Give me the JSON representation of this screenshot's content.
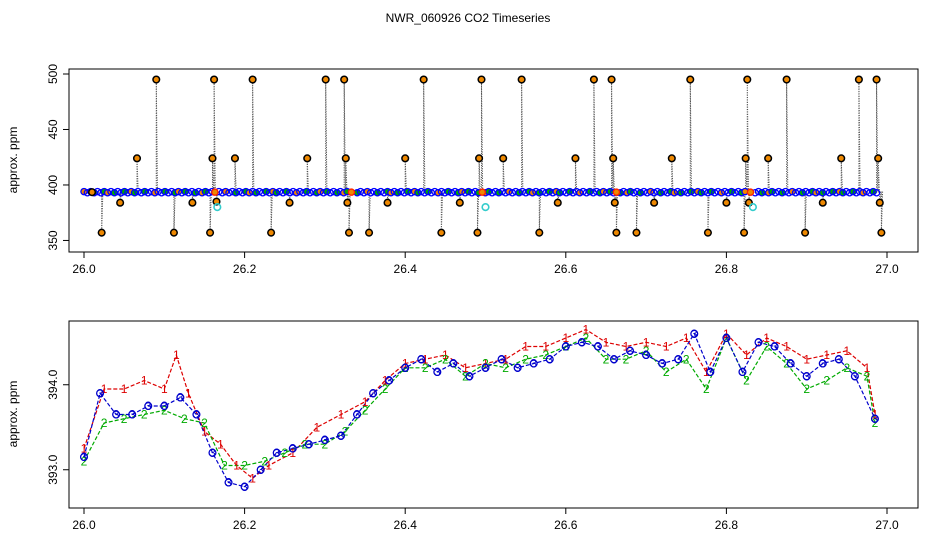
{
  "title": "NWR_060926  CO2 Timeseries",
  "colors": {
    "frame": "#000000",
    "trace": "#555555",
    "flagged_marker": "#000000",
    "outlier_marker": "#33cccc",
    "main_marker": "#0000ff",
    "marker_fill_green": "#00aa00",
    "marker_fill_orange": "#ee8800",
    "line_1": "#dd0000",
    "line_2": "#00aa00",
    "line_3": "#0000cc"
  },
  "chart_data": [
    {
      "type": "scatter",
      "title": "",
      "xlabel": "",
      "ylabel": "approx. ppm",
      "xlim": [
        26.0,
        27.0
      ],
      "ylim": [
        345,
        500
      ],
      "x_ticks": [
        26.0,
        26.2,
        26.4,
        26.6,
        26.8,
        27.0
      ],
      "y_ticks": [
        350,
        400,
        450,
        500
      ],
      "x_tick_labels": [
        "26.0",
        "26.2",
        "26.4",
        "26.6",
        "26.8",
        "27.0"
      ],
      "y_tick_labels": [
        "350",
        "400",
        "450",
        "500"
      ],
      "grid": false,
      "baseline": {
        "x": [
          26.0,
          26.99
        ],
        "y": 393.5
      },
      "segment_breaks": [
        26.163,
        26.333,
        26.496,
        26.663,
        26.83
      ],
      "flagged_points": [
        {
          "x": 26.01,
          "y": 393.5
        },
        {
          "x": 26.022,
          "y": 357
        },
        {
          "x": 26.045,
          "y": 384
        },
        {
          "x": 26.066,
          "y": 424
        },
        {
          "x": 26.09,
          "y": 495
        },
        {
          "x": 26.112,
          "y": 357
        },
        {
          "x": 26.135,
          "y": 384
        },
        {
          "x": 26.157,
          "y": 357
        },
        {
          "x": 26.16,
          "y": 424
        },
        {
          "x": 26.162,
          "y": 495
        },
        {
          "x": 26.165,
          "y": 385
        },
        {
          "x": 26.188,
          "y": 424
        },
        {
          "x": 26.21,
          "y": 495
        },
        {
          "x": 26.233,
          "y": 357
        },
        {
          "x": 26.256,
          "y": 384
        },
        {
          "x": 26.278,
          "y": 424
        },
        {
          "x": 26.301,
          "y": 495
        },
        {
          "x": 26.324,
          "y": 495
        },
        {
          "x": 26.326,
          "y": 424
        },
        {
          "x": 26.328,
          "y": 384
        },
        {
          "x": 26.33,
          "y": 357
        },
        {
          "x": 26.355,
          "y": 357
        },
        {
          "x": 26.378,
          "y": 384
        },
        {
          "x": 26.4,
          "y": 424
        },
        {
          "x": 26.423,
          "y": 495
        },
        {
          "x": 26.445,
          "y": 357
        },
        {
          "x": 26.468,
          "y": 384
        },
        {
          "x": 26.49,
          "y": 357
        },
        {
          "x": 26.492,
          "y": 424
        },
        {
          "x": 26.495,
          "y": 495
        },
        {
          "x": 26.522,
          "y": 424
        },
        {
          "x": 26.545,
          "y": 495
        },
        {
          "x": 26.567,
          "y": 357
        },
        {
          "x": 26.59,
          "y": 384
        },
        {
          "x": 26.612,
          "y": 424
        },
        {
          "x": 26.635,
          "y": 495
        },
        {
          "x": 26.657,
          "y": 495
        },
        {
          "x": 26.659,
          "y": 424
        },
        {
          "x": 26.661,
          "y": 384
        },
        {
          "x": 26.663,
          "y": 357
        },
        {
          "x": 26.688,
          "y": 357
        },
        {
          "x": 26.71,
          "y": 384
        },
        {
          "x": 26.732,
          "y": 424
        },
        {
          "x": 26.755,
          "y": 495
        },
        {
          "x": 26.777,
          "y": 357
        },
        {
          "x": 26.8,
          "y": 384
        },
        {
          "x": 26.822,
          "y": 357
        },
        {
          "x": 26.824,
          "y": 424
        },
        {
          "x": 26.826,
          "y": 495
        },
        {
          "x": 26.828,
          "y": 384
        },
        {
          "x": 26.852,
          "y": 424
        },
        {
          "x": 26.875,
          "y": 495
        },
        {
          "x": 26.898,
          "y": 357
        },
        {
          "x": 26.92,
          "y": 384
        },
        {
          "x": 26.943,
          "y": 424
        },
        {
          "x": 26.965,
          "y": 495
        },
        {
          "x": 26.987,
          "y": 495
        },
        {
          "x": 26.989,
          "y": 424
        },
        {
          "x": 26.991,
          "y": 384
        },
        {
          "x": 26.993,
          "y": 357
        }
      ],
      "outlier_points": [
        {
          "x": 26.166,
          "y": 380
        },
        {
          "x": 26.5,
          "y": 380
        },
        {
          "x": 26.833,
          "y": 380
        }
      ]
    },
    {
      "type": "line",
      "title": "",
      "xlabel": "",
      "ylabel": "approx. ppm",
      "xlim": [
        26.0,
        27.0
      ],
      "ylim": [
        392.55,
        394.75
      ],
      "x_ticks": [
        26.0,
        26.2,
        26.4,
        26.6,
        26.8,
        27.0
      ],
      "y_ticks": [
        393.0,
        394.0
      ],
      "x_tick_labels": [
        "26.0",
        "26.2",
        "26.4",
        "26.6",
        "26.8",
        "27.0"
      ],
      "y_tick_labels": [
        "393.0",
        "394.0"
      ],
      "grid": false,
      "series": [
        {
          "name": "1",
          "marker": "1",
          "x": [
            26.0,
            26.025,
            26.05,
            26.075,
            26.1,
            26.115,
            26.13,
            26.15,
            26.17,
            26.19,
            26.21,
            26.23,
            26.26,
            26.29,
            26.32,
            26.35,
            26.375,
            26.4,
            26.425,
            26.45,
            26.475,
            26.5,
            26.525,
            26.55,
            26.575,
            26.6,
            26.625,
            26.65,
            26.675,
            26.7,
            26.725,
            26.75,
            26.775,
            26.8,
            26.825,
            26.85,
            26.875,
            26.9,
            26.925,
            26.95,
            26.975,
            26.985
          ],
          "y": [
            393.25,
            393.95,
            393.95,
            394.05,
            393.95,
            394.35,
            393.9,
            393.45,
            393.3,
            393.05,
            392.9,
            393.05,
            393.2,
            393.5,
            393.65,
            393.8,
            394.05,
            394.25,
            394.3,
            394.35,
            394.2,
            394.25,
            394.3,
            394.45,
            394.45,
            394.55,
            394.65,
            394.5,
            394.45,
            394.5,
            394.45,
            394.55,
            394.15,
            394.6,
            394.35,
            394.55,
            394.45,
            394.3,
            394.35,
            394.4,
            394.2,
            393.65
          ]
        },
        {
          "name": "2",
          "marker": "2",
          "x": [
            26.0,
            26.025,
            26.05,
            26.075,
            26.1,
            26.125,
            26.15,
            26.175,
            26.2,
            26.225,
            26.25,
            26.275,
            26.3,
            26.325,
            26.35,
            26.375,
            26.4,
            26.425,
            26.45,
            26.475,
            26.5,
            26.525,
            26.55,
            26.575,
            26.6,
            26.625,
            26.65,
            26.675,
            26.7,
            26.725,
            26.75,
            26.775,
            26.8,
            26.825,
            26.85,
            26.875,
            26.9,
            26.925,
            26.95,
            26.975,
            26.985
          ],
          "y": [
            393.1,
            393.55,
            393.6,
            393.65,
            393.7,
            393.6,
            393.55,
            393.05,
            393.05,
            393.1,
            393.2,
            393.3,
            393.3,
            393.45,
            393.7,
            393.95,
            394.2,
            394.2,
            394.3,
            394.1,
            394.25,
            394.2,
            394.3,
            394.35,
            394.45,
            394.55,
            394.3,
            394.3,
            394.4,
            394.15,
            394.3,
            393.95,
            394.55,
            394.05,
            394.45,
            394.25,
            393.95,
            394.05,
            394.2,
            394.1,
            393.55
          ]
        },
        {
          "name": "3",
          "marker": "3",
          "x": [
            26.0,
            26.02,
            26.04,
            26.06,
            26.08,
            26.1,
            26.12,
            26.14,
            26.16,
            26.18,
            26.2,
            26.22,
            26.24,
            26.26,
            26.28,
            26.3,
            26.32,
            26.34,
            26.36,
            26.38,
            26.4,
            26.42,
            26.44,
            26.46,
            26.48,
            26.5,
            26.52,
            26.54,
            26.56,
            26.58,
            26.6,
            26.62,
            26.64,
            26.66,
            26.68,
            26.7,
            26.72,
            26.74,
            26.76,
            26.78,
            26.8,
            26.82,
            26.84,
            26.86,
            26.88,
            26.9,
            26.92,
            26.94,
            26.96,
            26.985
          ],
          "y": [
            393.15,
            393.9,
            393.65,
            393.65,
            393.75,
            393.75,
            393.85,
            393.65,
            393.2,
            392.85,
            392.8,
            393.0,
            393.2,
            393.25,
            393.3,
            393.35,
            393.4,
            393.65,
            393.9,
            394.05,
            394.2,
            394.3,
            394.15,
            394.25,
            394.1,
            394.2,
            394.3,
            394.2,
            394.25,
            394.3,
            394.45,
            394.5,
            394.45,
            394.3,
            394.4,
            394.35,
            394.25,
            394.3,
            394.6,
            394.15,
            394.55,
            394.15,
            394.5,
            394.45,
            394.25,
            394.1,
            394.25,
            394.3,
            394.1,
            393.6
          ]
        }
      ]
    }
  ]
}
